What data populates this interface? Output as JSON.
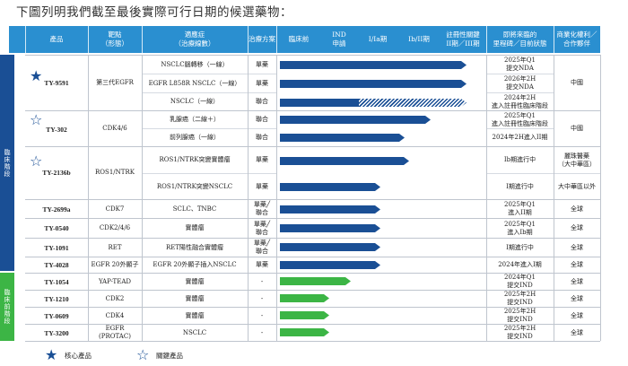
{
  "title": "下圖列明我們截至最後實際可行日期的候選藥物：",
  "headers": [
    "產品",
    "靶點\n（形態）",
    "適應症\n（治療線數）",
    "治療方案",
    "臨床前",
    "IND\n申請",
    "I/Ia期",
    "Ib/II期",
    "註冊性關鍵\nII期／III期",
    "即將來臨的\n里程碑／目前狀態",
    "商業化權利／\n合作夥伴"
  ],
  "sections": {
    "clinical": "臨床階段",
    "preclinical": "臨床前階段"
  },
  "products": {
    "ty9591": {
      "name": "TY-9591",
      "target": "第三代EGFR",
      "partner": "中國",
      "rows": [
        {
          "indication": "NSCLC腦轉移（一線）",
          "regimen": "單藥",
          "milestone": "2025年Q1\n提交NDA",
          "progress": 0.95
        },
        {
          "indication": "EGFR L858R NSCLC（一線）",
          "regimen": "單藥",
          "milestone": "2026年2H\n提交NDA",
          "progress": 0.95
        },
        {
          "indication": "NSCLC（一線）",
          "regimen": "聯合",
          "milestone": "2024年2H\n進入註冊性臨床階段",
          "progress": 0.95
        }
      ]
    },
    "ty302": {
      "name": "TY-302",
      "target": "CDK4/6",
      "partner": "中國",
      "rows": [
        {
          "indication": "乳腺癌（二線＋）",
          "regimen": "聯合",
          "milestone": "2025年Q1\n進入註冊性臨床階段",
          "progress": 0.82
        },
        {
          "indication": "前列腺癌（一線）",
          "regimen": "聯合",
          "milestone": "2024年2H進入II期",
          "progress": 0.72
        }
      ]
    },
    "ty2136b": {
      "name": "TY-2136b",
      "target": "ROS1/NTRK",
      "rows": [
        {
          "indication": "ROS1/NTRK突變實體瘤",
          "regimen": "單藥",
          "milestone": "Ib期進行中",
          "partner": "麗珠醫藥\n（大中華區）",
          "progress": 0.61
        },
        {
          "indication": "ROS1/NTRK突變NSCLC",
          "regimen": "單藥",
          "milestone": "I期進行中",
          "partner": "大中華區以外",
          "progress": 0.51
        }
      ]
    },
    "ty2699a": {
      "name": "TY-2699a",
      "target": "CDK7",
      "indication": "SCLC、TNBC",
      "regimen": "單藥╱\n聯合",
      "milestone": "2025年Q1\n進入II期",
      "partner": "全球",
      "progress": 0.51
    },
    "ty0540": {
      "name": "TY-0540",
      "target": "CDK2/4/6",
      "indication": "實體瘤",
      "regimen": "單藥╱\n聯合",
      "milestone": "2025年Q1\n進入Ib期",
      "partner": "全球",
      "progress": 0.51
    },
    "ty1091": {
      "name": "TY-1091",
      "target": "RET",
      "indication": "RET陽性融合實體瘤",
      "regimen": "單藥╱\n聯合",
      "milestone": "I期進行中",
      "partner": "全球",
      "progress": 0.51
    },
    "ty4028": {
      "name": "TY-4028",
      "target": "EGFR 20外顯子",
      "indication": "EGFR 20外顯子插入NSCLC",
      "regimen": "單藥",
      "milestone": "2024年進入I期",
      "partner": "全球",
      "progress": 0.51
    },
    "ty1054": {
      "name": "TY-1054",
      "target": "YAP-TEAD",
      "indication": "實體瘤",
      "regimen": "-",
      "milestone": "2024年Q1\n提交IND",
      "partner": "全球",
      "progress": 0.31
    },
    "ty1210": {
      "name": "TY-1210",
      "target": "CDK2",
      "indication": "實體瘤",
      "regimen": "-",
      "milestone": "2025年2H\n提交IND",
      "partner": "全球",
      "progress": 0.27
    },
    "ty0609": {
      "name": "TY-0609",
      "target": "CDK4",
      "indication": "實體瘤",
      "regimen": "-",
      "milestone": "2025年2H\n提交IND",
      "partner": "全球",
      "progress": 0.27
    },
    "ty3200": {
      "name": "TY-3200",
      "target": "EGFR\n(PROTAC)",
      "indication": "NSCLC",
      "regimen": "-",
      "milestone": "2025年2H\n提交IND",
      "partner": "全球",
      "progress": 0.27
    }
  },
  "legend": {
    "core": "核心產品",
    "key": "關鍵產品"
  },
  "icons": {
    "core": "filled-star-icon",
    "key": "outline-star-icon"
  },
  "colors": {
    "header": "#2a8fd0",
    "clinical_bar": "#1a4f95",
    "preclinical_bar": "#3cb545",
    "clinical_side": "#1a4f95",
    "preclinical_side": "#3cb545"
  }
}
